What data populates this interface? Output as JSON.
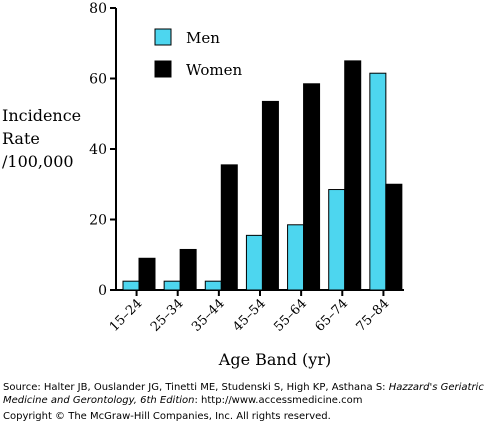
{
  "chart_data": {
    "type": "bar",
    "categories": [
      "15–24",
      "25–34",
      "35–44",
      "45–54",
      "55–64",
      "65–74",
      "75–84"
    ],
    "series": [
      {
        "name": "Men",
        "values": [
          2.5,
          2.5,
          2.5,
          15.5,
          18.5,
          28.5,
          61.5
        ],
        "color": "#4dd6ef"
      },
      {
        "name": "Women",
        "values": [
          9,
          11.5,
          35.5,
          53.5,
          58.5,
          65,
          30
        ],
        "color": "#000000"
      }
    ],
    "ylabel_lines": [
      "Incidence",
      "Rate",
      "/100,000"
    ],
    "xlabel": "Age Band (yr)",
    "ylim": [
      0,
      80
    ],
    "yticks": [
      0,
      20,
      40,
      60,
      80
    ],
    "grid": false,
    "legend_position": "top-left"
  },
  "source": {
    "prefix": "Source: Halter JB, Ouslander JG, Tinetti ME, Studenski S, High KP, Asthana S: ",
    "title": "Hazzard's Geriatric Medicine and Gerontology, 6th Edition",
    "suffix": ": http://www.accessmedicine.com"
  },
  "copyright": "Copyright © The McGraw-Hill Companies, Inc. All rights reserved."
}
